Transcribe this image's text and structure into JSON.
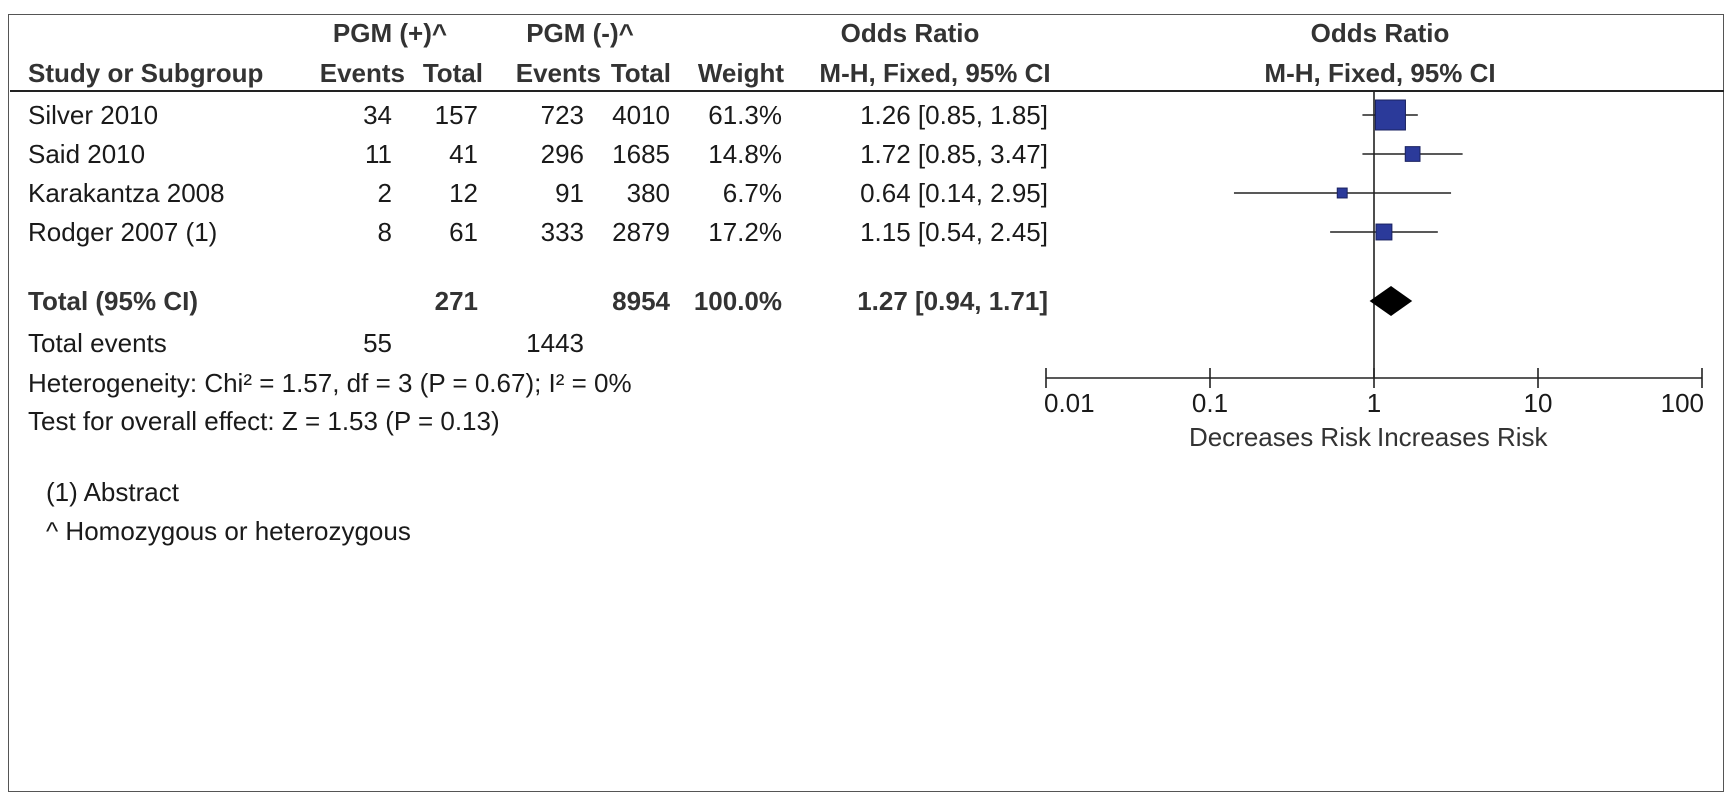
{
  "header": {
    "group1": "PGM (+)^",
    "group2": "PGM (-)^",
    "or_col_title": "Odds Ratio",
    "or_col_method": "M-H, Fixed, 95% CI",
    "plot_title": "Odds Ratio",
    "plot_method": "M-H, Fixed, 95% CI",
    "study": "Study or Subgroup",
    "events1": "Events",
    "total1": "Total",
    "events2": "Events",
    "total2": "Total",
    "weight": "Weight"
  },
  "rows": [
    {
      "study": "Silver 2010",
      "e1": "34",
      "t1": "157",
      "e2": "723",
      "t2": "4010",
      "weight": "61.3%",
      "or_text": "1.26 [0.85, 1.85]"
    },
    {
      "study": "Said 2010",
      "e1": "11",
      "t1": "41",
      "e2": "296",
      "t2": "1685",
      "weight": "14.8%",
      "or_text": "1.72 [0.85, 3.47]"
    },
    {
      "study": "Karakantza 2008",
      "e1": "2",
      "t1": "12",
      "e2": "91",
      "t2": "380",
      "weight": "6.7%",
      "or_text": "0.64 [0.14, 2.95]"
    },
    {
      "study": "Rodger 2007 (1)",
      "e1": "8",
      "t1": "61",
      "e2": "333",
      "t2": "2879",
      "weight": "17.2%",
      "or_text": "1.15 [0.54, 2.45]"
    }
  ],
  "total": {
    "label": "Total (95% CI)",
    "t1": "271",
    "t2": "8954",
    "weight": "100.0%",
    "or_text": "1.27 [0.94, 1.71]"
  },
  "total_events": {
    "label": "Total events",
    "e1": "55",
    "e2": "1443"
  },
  "heterogeneity": "Heterogeneity: Chi² = 1.57, df = 3 (P = 0.67); I² = 0%",
  "overall_effect": "Test for overall effect: Z = 1.53 (P = 0.13)",
  "footnotes": [
    "(1) Abstract",
    "^ Homozygous or heterozygous"
  ],
  "chart_data": {
    "type": "forest",
    "scale": "log",
    "xlim": [
      0.01,
      100
    ],
    "ticks": [
      0.01,
      0.1,
      1,
      10,
      100
    ],
    "tick_labels": [
      "0.01",
      "0.1",
      "1",
      "10",
      "100"
    ],
    "null_value": 1,
    "xlabel_left": "Decreases Risk",
    "xlabel_right": "Increases Risk",
    "studies": [
      {
        "name": "Silver 2010",
        "or": 1.26,
        "lo": 0.85,
        "hi": 1.85,
        "weight": 61.3
      },
      {
        "name": "Said 2010",
        "or": 1.72,
        "lo": 0.85,
        "hi": 3.47,
        "weight": 14.8
      },
      {
        "name": "Karakantza 2008",
        "or": 0.64,
        "lo": 0.14,
        "hi": 2.95,
        "weight": 6.7
      },
      {
        "name": "Rodger 2007 (1)",
        "or": 1.15,
        "lo": 0.54,
        "hi": 2.45,
        "weight": 17.2
      }
    ],
    "pooled": {
      "or": 1.27,
      "lo": 0.94,
      "hi": 1.71
    },
    "colors": {
      "study_marker": "#2b3a9a",
      "pooled_marker": "#000000",
      "lines": "#222222"
    }
  }
}
